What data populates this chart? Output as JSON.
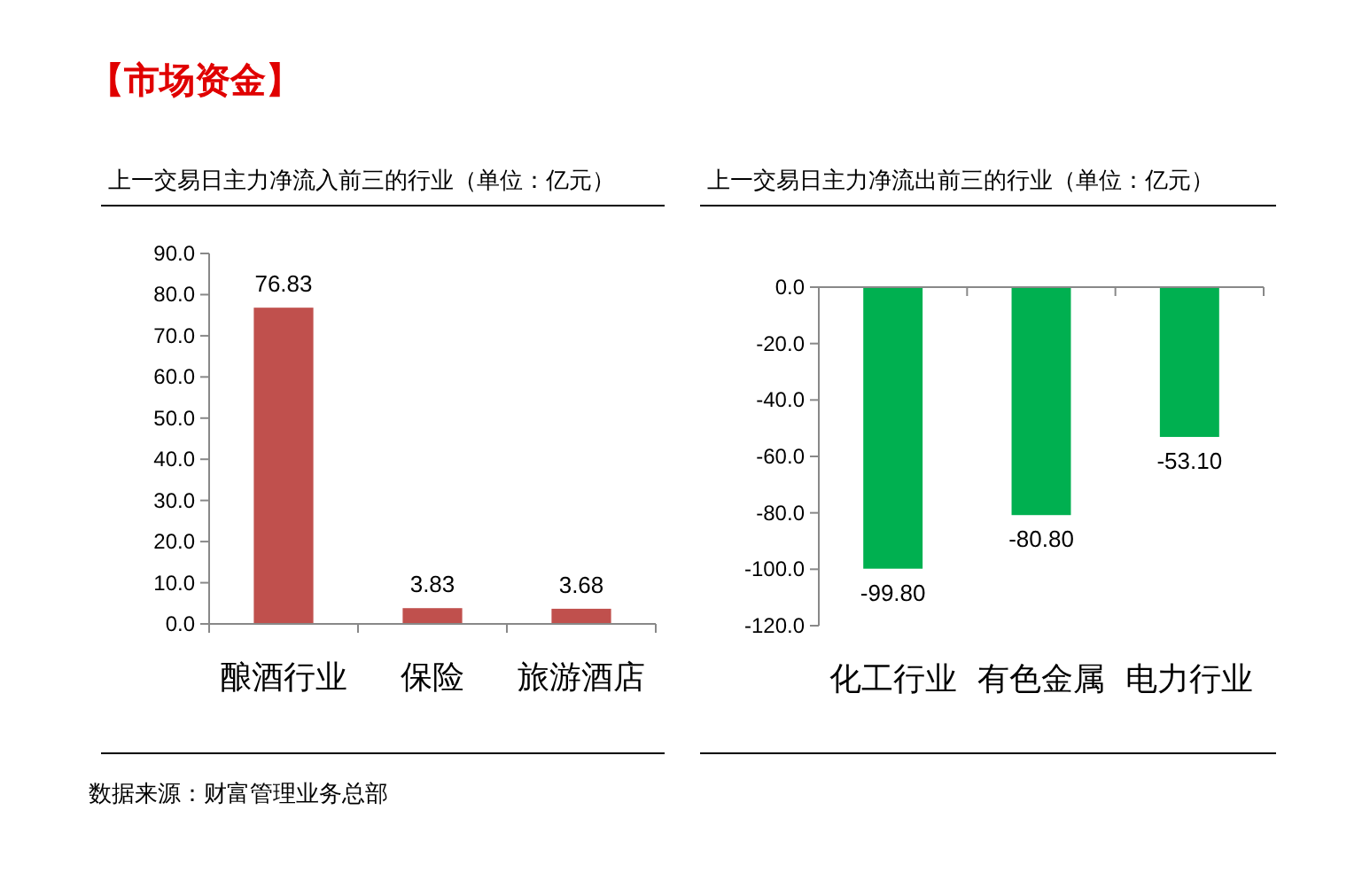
{
  "chart_data": [
    {
      "type": "bar",
      "title": "上一交易日主力净流入前三的行业（单位：亿元）",
      "categories": [
        "酿酒行业",
        "保险",
        "旅游酒店"
      ],
      "values": [
        76.83,
        3.83,
        3.68
      ],
      "color": "#c0504d",
      "data_labels": true,
      "ylim": [
        0,
        90
      ],
      "yticks": [
        {
          "value": 0,
          "label": "0.0"
        },
        {
          "value": 10,
          "label": "10.0"
        },
        {
          "value": 20,
          "label": "20.0"
        },
        {
          "value": 30,
          "label": "30.0"
        },
        {
          "value": 40,
          "label": "40.0"
        },
        {
          "value": 50,
          "label": "50.0"
        },
        {
          "value": 60,
          "label": "60.0"
        },
        {
          "value": 70,
          "label": "70.0"
        },
        {
          "value": 80,
          "label": "80.0"
        },
        {
          "value": 90,
          "label": "90.0"
        }
      ],
      "grid": false,
      "annotations": [
        "【市场资金】",
        "数据来源：财富管理业务总部"
      ]
    },
    {
      "type": "bar",
      "title": "上一交易日主力净流出前三的行业（单位：亿元）",
      "categories": [
        "化工行业",
        "有色金属",
        "电力行业"
      ],
      "values": [
        -99.8,
        -80.8,
        -53.1
      ],
      "color": "#00b050",
      "value_labels": [
        "-99.80",
        "-80.80",
        "-53.10"
      ],
      "ylim": [
        -120,
        0
      ],
      "yticks": [
        {
          "value": -120,
          "label": "-120.0"
        },
        {
          "value": -100,
          "label": "-100.0"
        },
        {
          "value": -80,
          "label": "-80.0"
        },
        {
          "value": -60,
          "label": "-60.0"
        },
        {
          "value": -40,
          "label": "-40.0"
        },
        {
          "value": -20,
          "label": "-20.0"
        },
        {
          "value": 0,
          "label": "0.0"
        }
      ],
      "grid": false
    }
  ]
}
